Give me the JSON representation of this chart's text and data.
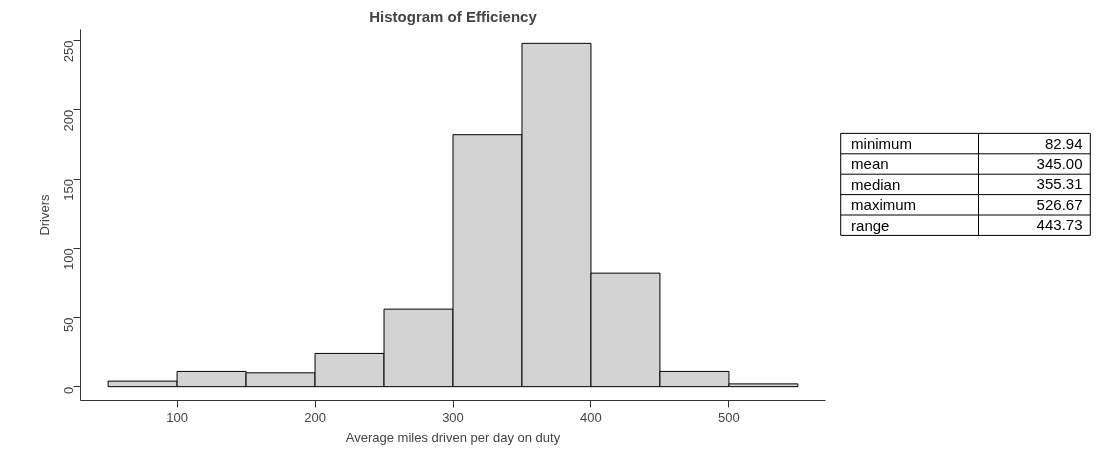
{
  "chart_data": {
    "type": "histogram",
    "title": "Histogram of Efficiency",
    "xlabel": "Average miles driven per day on duty",
    "ylabel": "Drivers",
    "bins": [
      50,
      100,
      150,
      200,
      250,
      300,
      350,
      400,
      450,
      500,
      550
    ],
    "values": [
      4,
      11,
      10,
      24,
      56,
      182,
      248,
      82,
      11,
      2
    ],
    "color": "#d3d3d3",
    "xlim": [
      30,
      570
    ],
    "ylim": [
      -10,
      258
    ],
    "xticks": [
      100,
      200,
      300,
      400,
      500
    ],
    "yticks": [
      0,
      50,
      100,
      150,
      200,
      250
    ],
    "grid": false,
    "annotations": [
      "minimum",
      "82.94",
      "mean",
      "345.00",
      "median",
      "355.31",
      "maximum",
      "526.67",
      "range",
      "443.73"
    ]
  }
}
